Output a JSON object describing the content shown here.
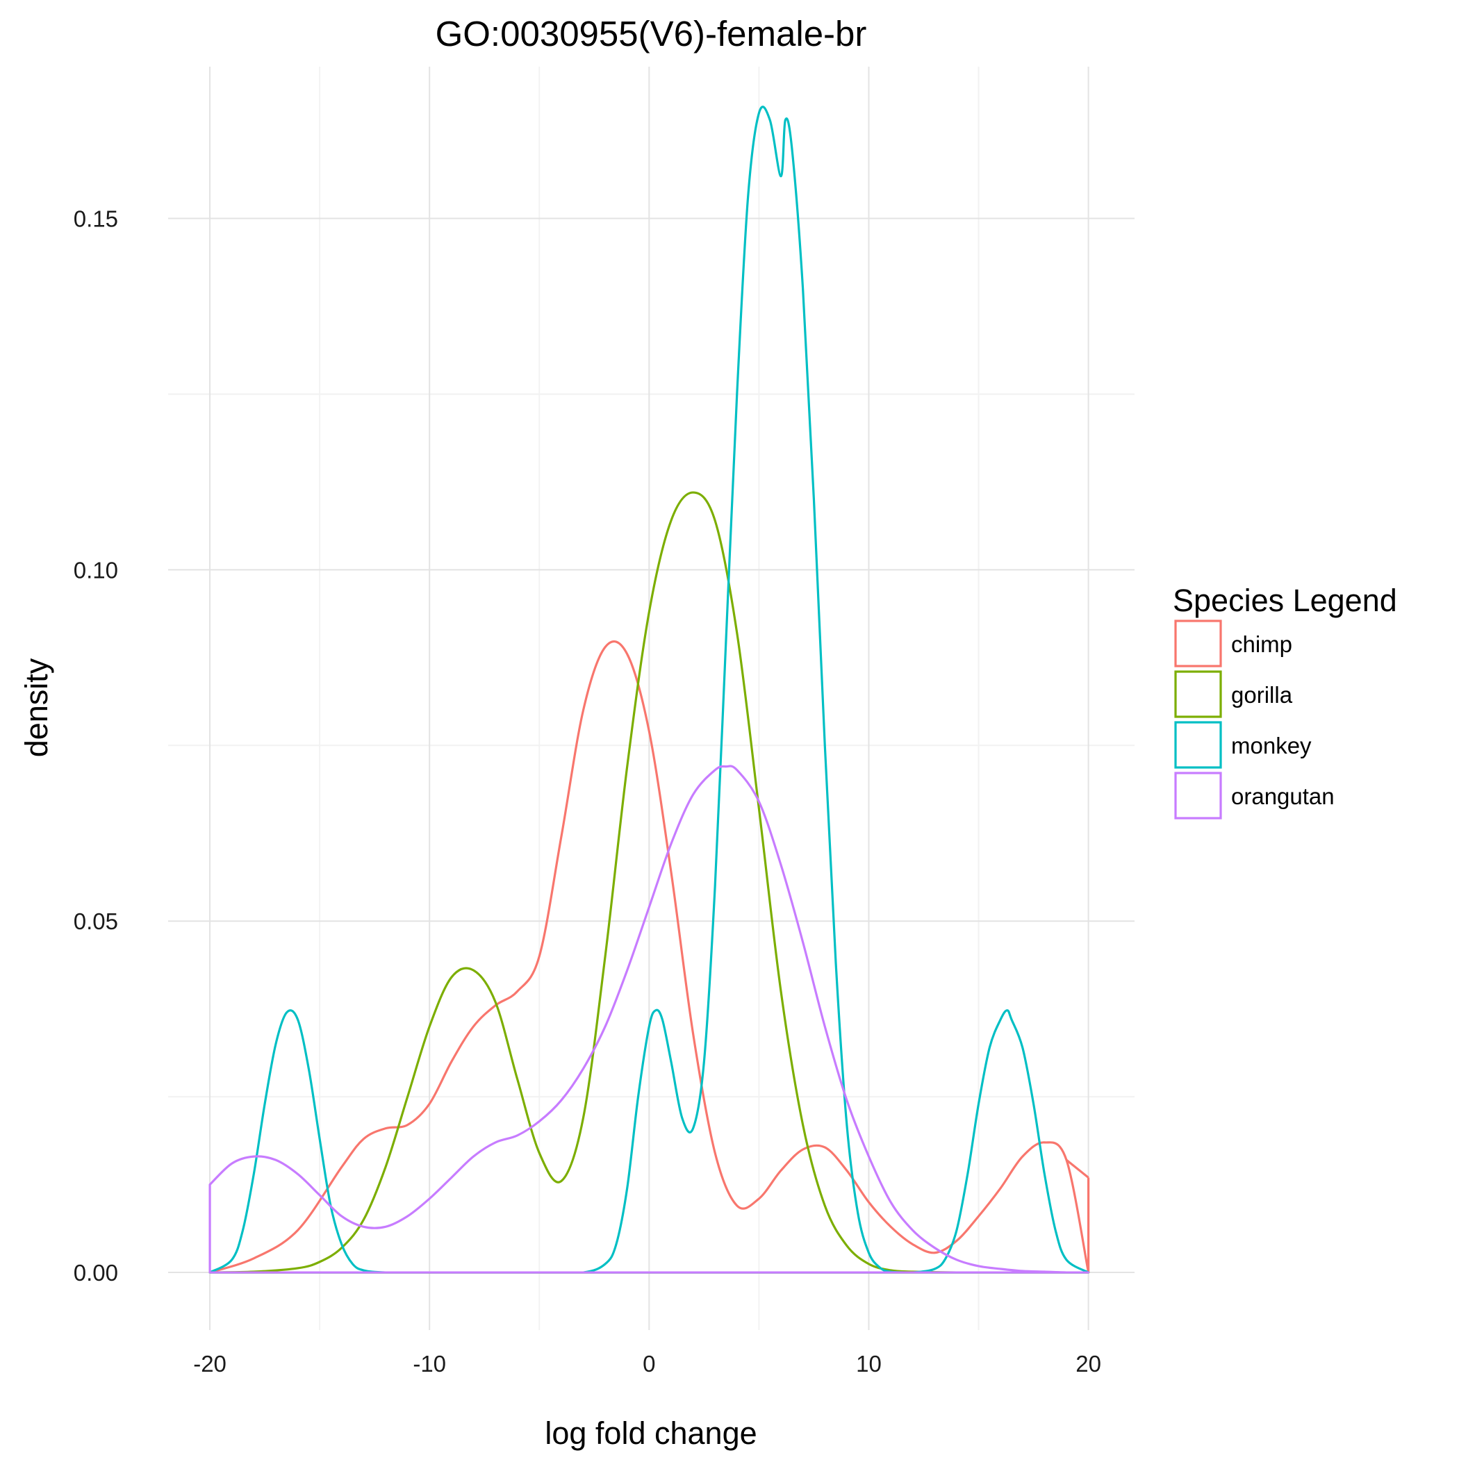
{
  "chart_data": {
    "type": "line",
    "subtype": "density",
    "title": "GO:0030955(V6)-female-br",
    "xlabel": "log fold change",
    "ylabel": "density",
    "xlim": [
      -21.9,
      22.1
    ],
    "ylim": [
      -0.0082,
      0.1716
    ],
    "x_ticks": [
      -20,
      -10,
      0,
      10,
      20
    ],
    "x_tick_labels": [
      "-20",
      "-10",
      "0",
      "10",
      "20"
    ],
    "y_ticks": [
      0,
      0.05,
      0.1,
      0.15
    ],
    "y_tick_labels": [
      "0.00",
      "0.05",
      "0.10",
      "0.15"
    ],
    "grid": true,
    "legend": {
      "title": "Species Legend",
      "position": "right"
    },
    "series": [
      {
        "name": "chimp",
        "color": "#F8766D",
        "x": [
          -20,
          -18,
          -16,
          -14,
          -13,
          -12,
          -11,
          -10,
          -9,
          -8,
          -7,
          -6,
          -5,
          -4,
          -3,
          -2,
          -1,
          0,
          1,
          2,
          3,
          4,
          5,
          6,
          7,
          8,
          9,
          10,
          11,
          12,
          13,
          14,
          15,
          16,
          17,
          18,
          19,
          20
        ],
        "y": [
          0.0,
          0.002,
          0.006,
          0.015,
          0.019,
          0.0205,
          0.021,
          0.024,
          0.03,
          0.035,
          0.038,
          0.04,
          0.045,
          0.062,
          0.08,
          0.089,
          0.088,
          0.077,
          0.057,
          0.034,
          0.017,
          0.0095,
          0.0105,
          0.0145,
          0.0175,
          0.0178,
          0.0145,
          0.01,
          0.0065,
          0.004,
          0.0028,
          0.0045,
          0.008,
          0.012,
          0.0165,
          0.0185,
          0.016,
          0.0
        ],
        "endpoint_edges": {
          "left": 0.0,
          "right": 0.0135
        }
      },
      {
        "name": "gorilla",
        "color": "#7CAE00",
        "x": [
          -20,
          -18,
          -16,
          -15,
          -14,
          -13,
          -12,
          -11,
          -10,
          -9,
          -8,
          -7,
          -6,
          -5,
          -4,
          -3,
          -2,
          -1,
          0,
          1,
          2,
          3,
          4,
          5,
          6,
          7,
          8,
          9,
          10,
          11,
          12,
          14,
          16,
          18,
          20
        ],
        "y": [
          0.0,
          0.0001,
          0.0006,
          0.0015,
          0.0035,
          0.0075,
          0.015,
          0.025,
          0.035,
          0.042,
          0.043,
          0.0385,
          0.0275,
          0.017,
          0.013,
          0.022,
          0.045,
          0.072,
          0.094,
          0.107,
          0.111,
          0.107,
          0.091,
          0.066,
          0.04,
          0.021,
          0.0095,
          0.0038,
          0.0012,
          0.0003,
          0.0001,
          0.0,
          0.0,
          0.0,
          0.0
        ]
      },
      {
        "name": "monkey",
        "color": "#00BFC4",
        "x": [
          -20,
          -19,
          -18.5,
          -18,
          -17.5,
          -17,
          -16.5,
          -16,
          -15.5,
          -15,
          -14.5,
          -14,
          -13.5,
          -13,
          -12,
          -10,
          -5,
          -3,
          -2,
          -1.5,
          -1,
          -0.5,
          0,
          0.3,
          0.6,
          1,
          1.5,
          2,
          2.5,
          3,
          3.5,
          4,
          4.5,
          5,
          5.5,
          6,
          6.2,
          6.5,
          7,
          7.5,
          8,
          8.5,
          9,
          9.5,
          10,
          10.5,
          11,
          12,
          13,
          13.5,
          14,
          14.5,
          15,
          15.5,
          16,
          16.3,
          16.5,
          17,
          17.5,
          18,
          18.5,
          19,
          20
        ],
        "y": [
          0.0,
          0.0018,
          0.006,
          0.014,
          0.024,
          0.0325,
          0.037,
          0.036,
          0.029,
          0.019,
          0.0095,
          0.004,
          0.0012,
          0.0003,
          0.0,
          0.0,
          0.0,
          0.0,
          0.0012,
          0.004,
          0.012,
          0.025,
          0.035,
          0.0373,
          0.036,
          0.03,
          0.022,
          0.0205,
          0.03,
          0.055,
          0.09,
          0.125,
          0.153,
          0.165,
          0.164,
          0.156,
          0.164,
          0.16,
          0.14,
          0.11,
          0.075,
          0.044,
          0.021,
          0.0085,
          0.0028,
          0.0007,
          0.0001,
          0.0,
          0.0005,
          0.002,
          0.006,
          0.014,
          0.024,
          0.032,
          0.036,
          0.0373,
          0.036,
          0.032,
          0.024,
          0.014,
          0.006,
          0.0018,
          0.0
        ],
        "endpoint_edges": {
          "left": 0.0,
          "right": 0.0
        }
      },
      {
        "name": "orangutan",
        "color": "#C77CFF",
        "x": [
          -20,
          -19,
          -18,
          -17,
          -16,
          -15,
          -14,
          -13,
          -12,
          -11,
          -10,
          -9,
          -8,
          -7,
          -6,
          -5,
          -4,
          -3,
          -2,
          -1,
          0,
          1,
          2,
          3,
          3.5,
          4,
          5,
          6,
          7,
          8,
          9,
          10,
          11,
          12,
          13,
          14,
          15,
          16,
          17,
          18,
          19,
          20
        ],
        "y": [
          0.0125,
          0.0155,
          0.0165,
          0.016,
          0.014,
          0.011,
          0.008,
          0.0065,
          0.0065,
          0.008,
          0.0105,
          0.0135,
          0.0165,
          0.0185,
          0.0195,
          0.0215,
          0.0245,
          0.029,
          0.035,
          0.043,
          0.052,
          0.061,
          0.068,
          0.0715,
          0.072,
          0.0715,
          0.067,
          0.058,
          0.047,
          0.035,
          0.0245,
          0.0165,
          0.01,
          0.006,
          0.0035,
          0.0018,
          0.0009,
          0.0005,
          0.0002,
          0.0001,
          0.0,
          0.0
        ],
        "endpoint_edges": {
          "left": 0.0,
          "right": 0.0
        }
      }
    ]
  }
}
